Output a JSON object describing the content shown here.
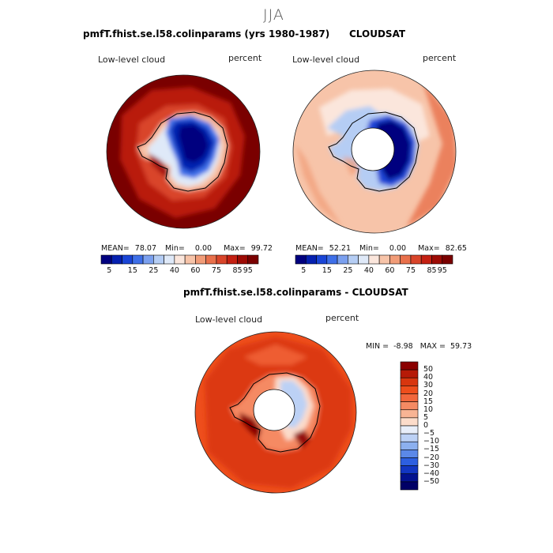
{
  "page": {
    "title": "JJA"
  },
  "panels": [
    {
      "title": "pmfT.fhist.se.l58.colinparams (yrs 1980-1987)",
      "left_label": "Low-level cloud",
      "right_label": "percent",
      "stats": {
        "mean_label": "MEAN=",
        "mean": "78.07",
        "min_label": "Min=",
        "min": "0.00",
        "max_label": "Max=",
        "max": "99.72"
      },
      "colorbar_ticks": [
        "5",
        "15",
        "25",
        "40",
        "60",
        "75",
        "85",
        "95"
      ]
    },
    {
      "title": "CLOUDSAT",
      "left_label": "Low-level cloud",
      "right_label": "percent",
      "stats": {
        "mean_label": "MEAN=",
        "mean": "52.21",
        "min_label": "Min=",
        "min": "0.00",
        "max_label": "Max=",
        "max": "82.65"
      },
      "colorbar_ticks": [
        "5",
        "15",
        "25",
        "40",
        "60",
        "75",
        "85",
        "95"
      ]
    },
    {
      "title": "pmfT.fhist.se.l58.colinparams - CLOUDSAT",
      "left_label": "Low-level cloud",
      "right_label": "percent",
      "minmax": {
        "min_label": "MIN =",
        "min": "-8.98",
        "max_label": "MAX =",
        "max": "59.73"
      },
      "colorbar_ticks": [
        "50",
        "40",
        "30",
        "20",
        "15",
        "10",
        "5",
        "0",
        "−5",
        "−10",
        "−15",
        "−20",
        "−30",
        "−40",
        "−50"
      ]
    }
  ],
  "colors": {
    "abs_scale": [
      "#00007f",
      "#0520b0",
      "#1a45d6",
      "#3e6fe8",
      "#7ba0ef",
      "#b5cdf4",
      "#dfe9f8",
      "#fbe6dc",
      "#f7c4a9",
      "#f19c78",
      "#e8704b",
      "#d9452a",
      "#c42012",
      "#9d0b05",
      "#7a0000"
    ],
    "diff_scale": [
      "#8b0000",
      "#b61a07",
      "#d8360f",
      "#ee4e1c",
      "#f2673c",
      "#f58a63",
      "#f8b494",
      "#fcdcca",
      "#e8eef9",
      "#bcd1f5",
      "#8cb0ef",
      "#5b88e8",
      "#2d5fe0",
      "#1236c2",
      "#03128f",
      "#000066"
    ],
    "outline": "#000000"
  },
  "chart_data": [
    {
      "type": "heatmap",
      "title": "pmfT.fhist.se.l58.colinparams (yrs 1980-1987)",
      "projection": "south-polar stereographic",
      "variable": "Low-level cloud",
      "units": "percent",
      "mean": 78.07,
      "min": 0.0,
      "max": 99.72,
      "contour_levels": [
        5,
        10,
        15,
        20,
        25,
        30,
        40,
        50,
        60,
        70,
        75,
        80,
        85,
        90,
        95
      ],
      "colorbar_labels": [
        5,
        15,
        25,
        40,
        60,
        75,
        85,
        95
      ]
    },
    {
      "type": "heatmap",
      "title": "CLOUDSAT",
      "projection": "south-polar stereographic",
      "variable": "Low-level cloud",
      "units": "percent",
      "mean": 52.21,
      "min": 0.0,
      "max": 82.65,
      "contour_levels": [
        5,
        10,
        15,
        20,
        25,
        30,
        40,
        50,
        60,
        70,
        75,
        80,
        85,
        90,
        95
      ],
      "colorbar_labels": [
        5,
        15,
        25,
        40,
        60,
        75,
        85,
        95
      ]
    },
    {
      "type": "heatmap",
      "title": "pmfT.fhist.se.l58.colinparams - CLOUDSAT",
      "projection": "south-polar stereographic",
      "variable": "Low-level cloud",
      "units": "percent",
      "min": -8.98,
      "max": 59.73,
      "contour_levels": [
        -50,
        -40,
        -30,
        -20,
        -15,
        -10,
        -5,
        0,
        5,
        10,
        15,
        20,
        30,
        40,
        50
      ],
      "colorbar_labels": [
        50,
        40,
        30,
        20,
        15,
        10,
        5,
        0,
        -5,
        -10,
        -15,
        -20,
        -30,
        -40,
        -50
      ]
    }
  ]
}
